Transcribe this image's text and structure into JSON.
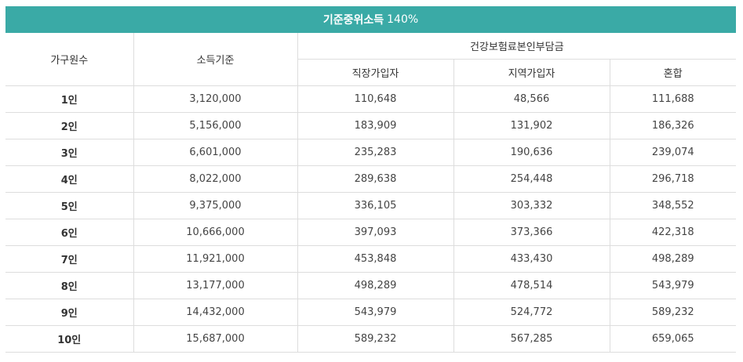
{
  "title": {
    "main": "기준중위소득",
    "percent": "140%"
  },
  "headers": {
    "households": "가구원수",
    "income": "소득기준",
    "insurance_group": "건강보험료본인부담금",
    "employee": "직장가입자",
    "regional": "지역가입자",
    "mixed": "혼합"
  },
  "rows": [
    [
      "1인",
      "3,120,000",
      "110,648",
      "48,566",
      "111,688"
    ],
    [
      "2인",
      "5,156,000",
      "183,909",
      "131,902",
      "186,326"
    ],
    [
      "3인",
      "6,601,000",
      "235,283",
      "190,636",
      "239,074"
    ],
    [
      "4인",
      "8,022,000",
      "289,638",
      "254,448",
      "296,718"
    ],
    [
      "5인",
      "9,375,000",
      "336,105",
      "303,332",
      "348,552"
    ],
    [
      "6인",
      "10,666,000",
      "397,093",
      "373,366",
      "422,318"
    ],
    [
      "7인",
      "11,921,000",
      "453,848",
      "433,430",
      "498,289"
    ],
    [
      "8인",
      "13,177,000",
      "498,289",
      "478,514",
      "543,979"
    ],
    [
      "9인",
      "14,432,000",
      "543,979",
      "524,772",
      "589,232"
    ],
    [
      "10인",
      "15,687,000",
      "589,232",
      "567,285",
      "659,065"
    ]
  ]
}
